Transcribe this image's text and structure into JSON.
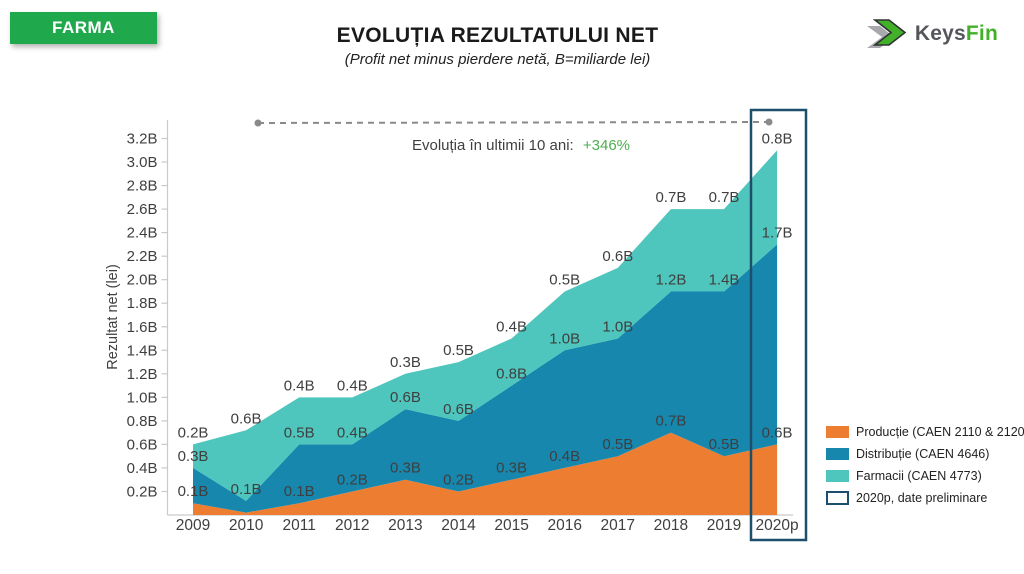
{
  "badge": {
    "label": "FARMA",
    "bg": "#1FA84C"
  },
  "header": {
    "title": "EVOLUȚIA REZULTATULUI NET",
    "subtitle": "(Profit net minus pierdere netă, B=miliarde lei)"
  },
  "logo": {
    "text_primary": "Keys",
    "text_accent": "Fin",
    "primary_color": "#54565B",
    "accent_color": "#43B02A"
  },
  "chart_data": {
    "type": "area",
    "stacked": true,
    "title": "EVOLUȚIA REZULTATULUI NET",
    "subtitle": "(Profit net minus pierdere netă, B=miliarde lei)",
    "xlabel": "",
    "ylabel": "Rezultat net (lei)",
    "ylim": [
      0,
      3.35
    ],
    "grid": false,
    "unit": "miliarde lei",
    "categories": [
      "2009",
      "2010",
      "2011",
      "2012",
      "2013",
      "2014",
      "2015",
      "2016",
      "2017",
      "2018",
      "2019",
      "2020p"
    ],
    "series": [
      {
        "id": "productie",
        "name": "Producție (CAEN 2110 & 2120)",
        "color": "#ED7D31",
        "values": [
          0.1,
          0.02,
          0.1,
          0.2,
          0.3,
          0.2,
          0.3,
          0.4,
          0.5,
          0.7,
          0.5,
          0.6
        ],
        "labels": [
          "0.1B",
          null,
          "0.1B",
          "0.2B",
          "0.3B",
          "0.2B",
          "0.3B",
          "0.4B",
          "0.5B",
          "0.7B",
          "0.5B",
          "0.6B"
        ]
      },
      {
        "id": "distributie",
        "name": "Distribuție (CAEN 4646)",
        "color": "#1787AE",
        "values": [
          0.3,
          0.1,
          0.5,
          0.4,
          0.6,
          0.6,
          0.8,
          1.0,
          1.0,
          1.2,
          1.4,
          1.7
        ],
        "labels": [
          "0.3B",
          "0.1B",
          "0.5B",
          "0.4B",
          "0.6B",
          "0.6B",
          "0.8B",
          "1.0B",
          "1.0B",
          "1.2B",
          "1.4B",
          "1.7B"
        ]
      },
      {
        "id": "farmacii",
        "name": "Farmacii (CAEN 4773)",
        "color": "#4EC6BD",
        "values": [
          0.2,
          0.6,
          0.4,
          0.4,
          0.3,
          0.5,
          0.4,
          0.5,
          0.6,
          0.7,
          0.7,
          0.8
        ],
        "labels": [
          "0.2B",
          "0.6B",
          "0.4B",
          "0.4B",
          "0.3B",
          "0.5B",
          "0.4B",
          "0.5B",
          "0.6B",
          "0.7B",
          "0.7B",
          "0.8B"
        ]
      }
    ],
    "ytick_labels": [
      "0.2B",
      "0.4B",
      "0.6B",
      "0.8B",
      "1.0B",
      "1.2B",
      "1.4B",
      "1.6B",
      "1.8B",
      "2.0B",
      "2.2B",
      "2.4B",
      "2.6B",
      "2.8B",
      "3.0B",
      "3.2B"
    ],
    "annotation": {
      "text": "Evoluția în ultimii 10 ani:",
      "highlight": "+346%",
      "highlight_color": "#4CAF50",
      "text_color": "#3F3F3F"
    },
    "highlight_box": {
      "category": "2020p",
      "color": "#1D4E6B"
    },
    "axis_color": "#C9C9C9",
    "text_color": "#3F3F3F",
    "dashed_line_color": "#8A8A8A"
  },
  "legend": {
    "items": [
      {
        "label": "Producție (CAEN 2110 & 2120)",
        "swatch": "#ED7D31"
      },
      {
        "label": "Distribuție (CAEN 4646)",
        "swatch": "#1787AE"
      },
      {
        "label": "Farmacii (CAEN 4773)",
        "swatch": "#4EC6BD"
      },
      {
        "label": "2020p, date preliminare",
        "swatch": "#FFFFFF",
        "border": "#1D4E6B"
      }
    ]
  }
}
